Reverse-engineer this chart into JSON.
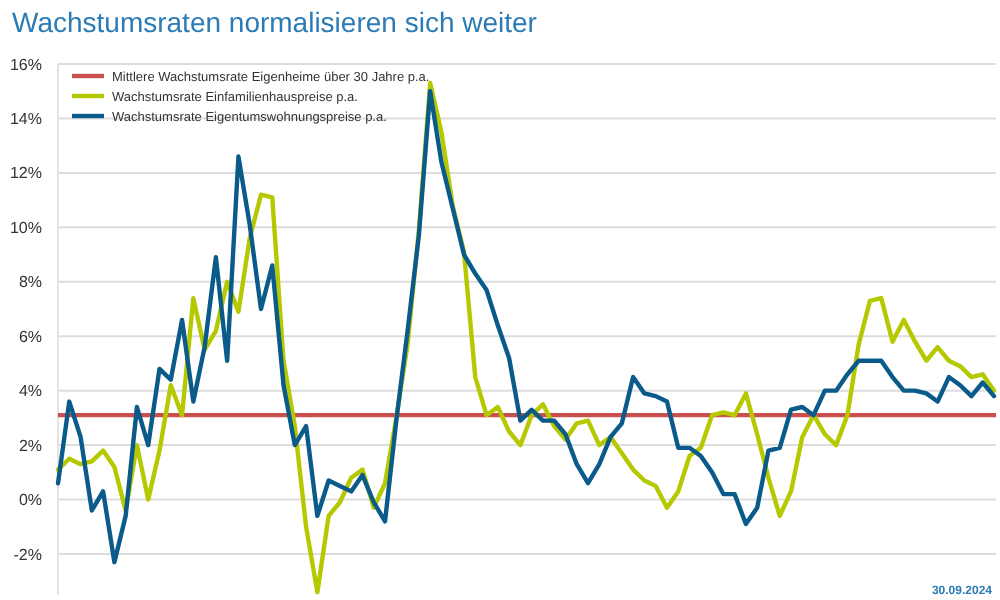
{
  "chart_data": {
    "type": "line",
    "title": "Wachstumsraten normalisieren sich weiter",
    "annotations": [
      "30.09.2024"
    ],
    "categories": [
      null,
      null,
      null,
      null,
      null,
      null,
      null,
      null,
      null,
      null,
      null,
      null,
      null,
      null,
      null,
      null,
      null,
      null,
      null,
      null,
      null,
      null,
      null,
      null,
      null,
      null,
      null,
      null,
      null,
      null,
      null,
      null,
      null,
      null,
      null,
      null,
      null,
      null,
      null,
      null,
      null,
      null,
      null,
      null,
      null,
      null,
      null,
      null,
      null,
      null,
      null,
      null,
      null,
      null,
      null,
      null,
      null,
      null,
      null,
      null,
      null,
      null,
      null,
      null,
      null,
      null,
      null,
      null,
      null,
      null,
      null,
      null,
      null,
      null,
      null,
      null,
      null,
      null,
      null,
      null,
      null,
      null,
      null,
      null
    ],
    "series": [
      {
        "name": "Wachstumsrate Einfamilienhauspreise p.a.",
        "color": "#b5c800",
        "values": [
          1.1,
          1.5,
          1.3,
          1.4,
          1.8,
          1.2,
          -0.4,
          2.0,
          0.0,
          1.8,
          4.2,
          3.1,
          7.4,
          5.5,
          6.2,
          8.0,
          6.9,
          9.6,
          11.2,
          11.1,
          5.1,
          2.7,
          -1.0,
          -3.4,
          -0.6,
          -0.1,
          0.8,
          1.1,
          -0.3,
          0.6,
          3.0,
          5.7,
          9.9,
          15.3,
          13.5,
          10.8,
          9.1,
          4.5,
          3.1,
          3.4,
          2.5,
          2.0,
          3.1,
          3.5,
          2.7,
          2.2,
          2.8,
          2.9,
          2.0,
          2.3,
          1.7,
          1.1,
          0.7,
          0.5,
          -0.3,
          0.3,
          1.6,
          1.9,
          3.1,
          3.2,
          3.1,
          3.9,
          2.4,
          0.8,
          -0.6,
          0.3,
          2.3,
          3.1,
          2.4,
          2.0,
          3.1,
          5.7,
          7.3,
          7.4,
          5.8,
          6.6,
          5.8,
          5.1,
          5.6,
          5.1,
          4.9,
          4.5,
          4.6,
          4.0
        ]
      },
      {
        "name": "Wachstumsrate Eigentumswohnungspreise p.a.",
        "color": "#0a5a8a",
        "values": [
          0.6,
          3.6,
          2.3,
          -0.4,
          0.3,
          -2.3,
          -0.6,
          3.4,
          2.0,
          4.8,
          4.4,
          6.6,
          3.6,
          5.6,
          8.9,
          5.1,
          12.6,
          10.1,
          7.0,
          8.6,
          4.2,
          2.0,
          2.7,
          -0.6,
          0.7,
          0.5,
          0.3,
          0.9,
          -0.1,
          -0.8,
          2.9,
          6.2,
          9.7,
          15.0,
          12.4,
          10.7,
          9.0,
          8.3,
          7.7,
          6.4,
          5.2,
          2.9,
          3.3,
          2.9,
          2.9,
          2.4,
          1.3,
          0.6,
          1.3,
          2.3,
          2.8,
          4.5,
          3.9,
          3.8,
          3.6,
          1.9,
          1.9,
          1.6,
          1.0,
          0.2,
          0.2,
          -0.9,
          -0.3,
          1.8,
          1.9,
          3.3,
          3.4,
          3.1,
          4.0,
          4.0,
          4.6,
          5.1,
          5.1,
          5.1,
          4.5,
          4.0,
          4.0,
          3.9,
          3.6,
          4.5,
          4.2,
          3.8,
          4.3,
          3.8
        ]
      }
    ],
    "ref_lines": [
      {
        "axis": "y",
        "value": 3.1,
        "label": "Mittlere Wachstumsrate Eigenheime über 30 Jahre p.a.",
        "color": "#c9504c"
      }
    ],
    "ylim": [
      -3.5,
      16
    ],
    "yticks": [
      {
        "value": -2,
        "label": "-2%"
      },
      {
        "value": 0,
        "label": "0%"
      },
      {
        "value": 2,
        "label": "2%"
      },
      {
        "value": 4,
        "label": "4%"
      },
      {
        "value": 6,
        "label": "6%"
      },
      {
        "value": 8,
        "label": "8%"
      },
      {
        "value": 10,
        "label": "10%"
      },
      {
        "value": 12,
        "label": "12%"
      },
      {
        "value": 14,
        "label": "14%"
      },
      {
        "value": 16,
        "label": "16%"
      }
    ],
    "grid": "y",
    "legend": "top left",
    "marker": "none",
    "line_style": "solid"
  }
}
